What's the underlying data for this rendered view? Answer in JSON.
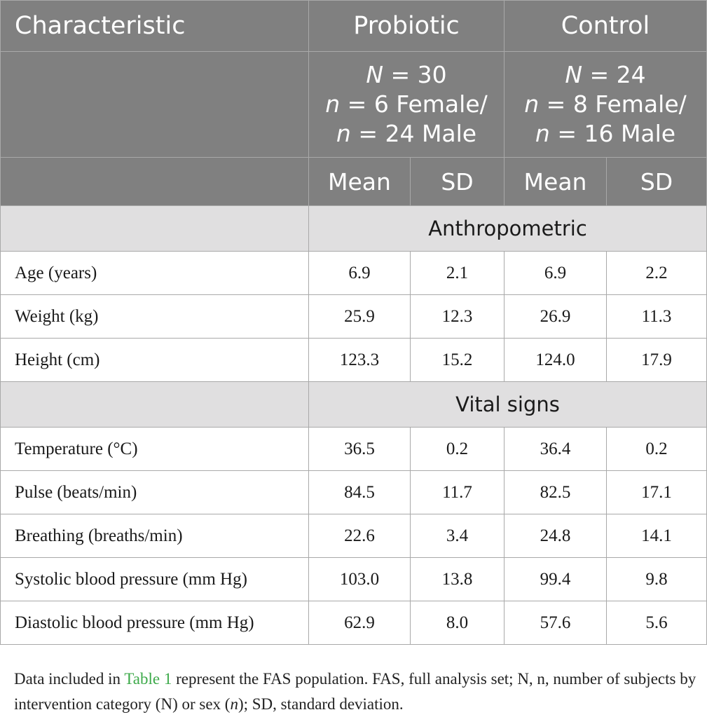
{
  "header": {
    "characteristic": "Characteristic",
    "groups": [
      {
        "name": "Probiotic",
        "N_label": "N",
        "N_value": " = 30",
        "n1_label": "n",
        "n1_value": " = 6 Female/",
        "n2_label": "n",
        "n2_value": " = 24 Male"
      },
      {
        "name": "Control",
        "N_label": "N",
        "N_value": " = 24",
        "n1_label": "n",
        "n1_value": " = 8 Female/",
        "n2_label": "n",
        "n2_value": " = 16 Male"
      }
    ],
    "stat_labels": [
      "Mean",
      "SD",
      "Mean",
      "SD"
    ]
  },
  "sections": [
    {
      "title": "Anthropometric",
      "rows": [
        {
          "label": "Age (years)",
          "values": [
            "6.9",
            "2.1",
            "6.9",
            "2.2"
          ]
        },
        {
          "label": "Weight (kg)",
          "values": [
            "25.9",
            "12.3",
            "26.9",
            "11.3"
          ]
        },
        {
          "label": "Height (cm)",
          "values": [
            "123.3",
            "15.2",
            "124.0",
            "17.9"
          ]
        }
      ]
    },
    {
      "title": "Vital signs",
      "rows": [
        {
          "label": "Temperature (°C)",
          "values": [
            "36.5",
            "0.2",
            "36.4",
            "0.2"
          ]
        },
        {
          "label": "Pulse (beats/min)",
          "values": [
            "84.5",
            "11.7",
            "82.5",
            "17.1"
          ]
        },
        {
          "label": "Breathing (breaths/min)",
          "values": [
            "22.6",
            "3.4",
            "24.8",
            "14.1"
          ]
        },
        {
          "label": "Systolic blood pressure (mm Hg)",
          "values": [
            "103.0",
            "13.8",
            "99.4",
            "9.8"
          ]
        },
        {
          "label": "Diastolic blood pressure (mm Hg)",
          "values": [
            "62.9",
            "8.0",
            "57.6",
            "5.6"
          ]
        }
      ]
    }
  ],
  "footnote": {
    "part1": "Data included in ",
    "link": "Table 1",
    "part2": " represent the FAS population. FAS, full analysis set; N, n, number of subjects by intervention category (N) or sex (",
    "italic": "n",
    "part3": "); SD, standard deviation."
  },
  "colors": {
    "header_bg": "#808080",
    "section_bg": "#e0dfe0",
    "border": "#a9a9a9",
    "link": "#3daa4a"
  }
}
